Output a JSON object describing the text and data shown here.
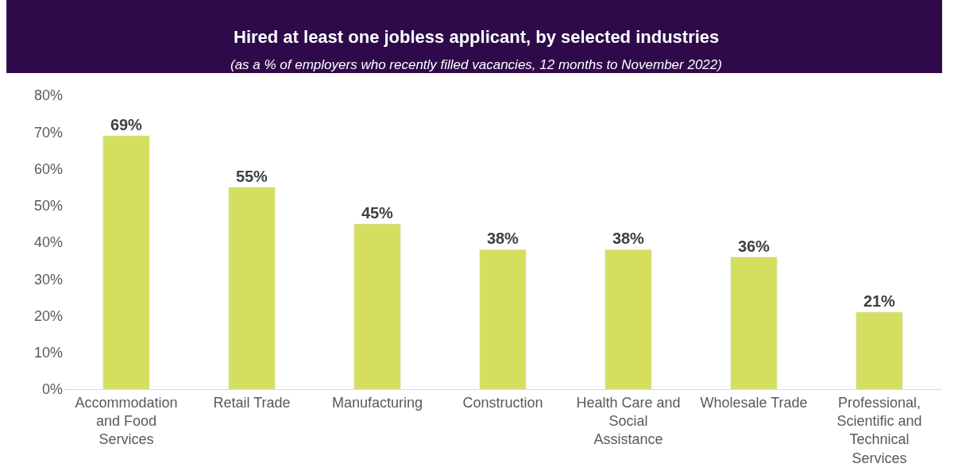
{
  "chart_data": {
    "type": "bar",
    "title": "Hired at least one jobless applicant, by selected industries",
    "subtitle": "(as a % of employers who recently filled vacancies, 12 months to November 2022)",
    "categories": [
      "Accommodation and Food Services",
      "Retail Trade",
      "Manufacturing",
      "Construction",
      "Health Care and Social Assistance",
      "Wholesale Trade",
      "Professional, Scientific and Technical Services"
    ],
    "values": [
      69,
      55,
      45,
      38,
      38,
      36,
      21
    ],
    "value_labels": [
      "69%",
      "55%",
      "45%",
      "38%",
      "38%",
      "36%",
      "21%"
    ],
    "color": "#d4df5f",
    "ylim": [
      0,
      80
    ],
    "yticks": [
      {
        "value": 0,
        "label": "0%"
      },
      {
        "value": 10,
        "label": "10%"
      },
      {
        "value": 20,
        "label": "20%"
      },
      {
        "value": 30,
        "label": "30%"
      },
      {
        "value": 40,
        "label": "40%"
      },
      {
        "value": 50,
        "label": "50%"
      },
      {
        "value": 60,
        "label": "60%"
      },
      {
        "value": 70,
        "label": "70%"
      },
      {
        "value": 80,
        "label": "80%"
      }
    ],
    "legend": false
  }
}
